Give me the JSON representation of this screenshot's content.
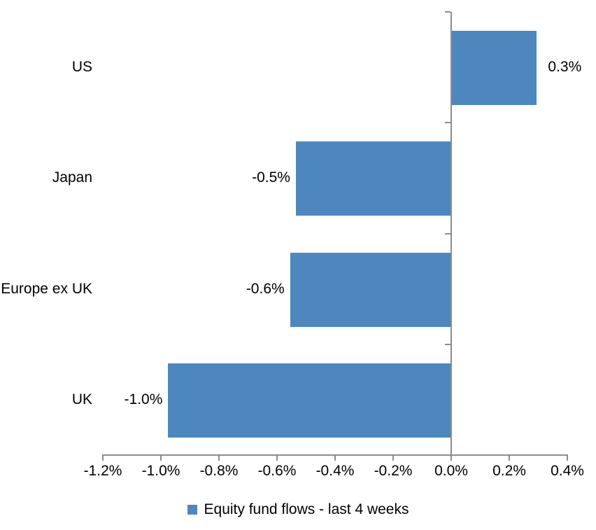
{
  "chart_data": {
    "type": "bar",
    "orientation": "horizontal",
    "title": "",
    "xlabel": "",
    "ylabel": "",
    "categories": [
      "US",
      "Japan",
      "Europe ex UK",
      "UK"
    ],
    "values": [
      0.3,
      -0.5,
      -0.6,
      -1.0
    ],
    "values_precise_pct": [
      0.295,
      -0.535,
      -0.555,
      -0.975
    ],
    "data_labels": [
      "0.3%",
      "-0.5%",
      "-0.6%",
      "-1.0%"
    ],
    "series": [
      {
        "name": "Equity fund flows - last 4 weeks",
        "values": [
          0.3,
          -0.5,
          -0.6,
          -1.0
        ]
      }
    ],
    "x_ticks": [
      "-1.2%",
      "-1.0%",
      "-0.8%",
      "-0.6%",
      "-0.4%",
      "-0.2%",
      "0.0%",
      "0.2%",
      "0.4%"
    ],
    "x_tick_values": [
      -1.2,
      -1.0,
      -0.8,
      -0.6,
      -0.4,
      -0.2,
      0.0,
      0.2,
      0.4
    ],
    "xlim": [
      -1.2,
      0.4
    ],
    "grid": false,
    "legend_position": "bottom",
    "bar_color": "#4E87BE",
    "axis_color": "#8C8C8C",
    "text_color": "#000000"
  },
  "legend": {
    "label": "Equity fund flows - last 4 weeks",
    "marker_color": "#4E87BE"
  }
}
